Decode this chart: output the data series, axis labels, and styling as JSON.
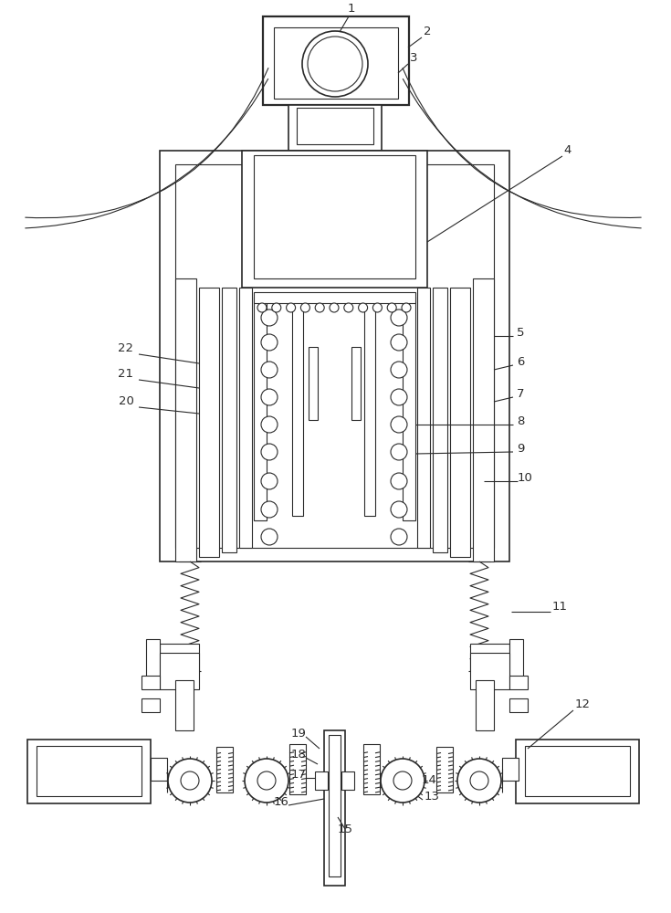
{
  "bg_color": "#ffffff",
  "line_color": "#2a2a2a",
  "fig_width": 7.35,
  "fig_height": 10.0,
  "dpi": 100
}
